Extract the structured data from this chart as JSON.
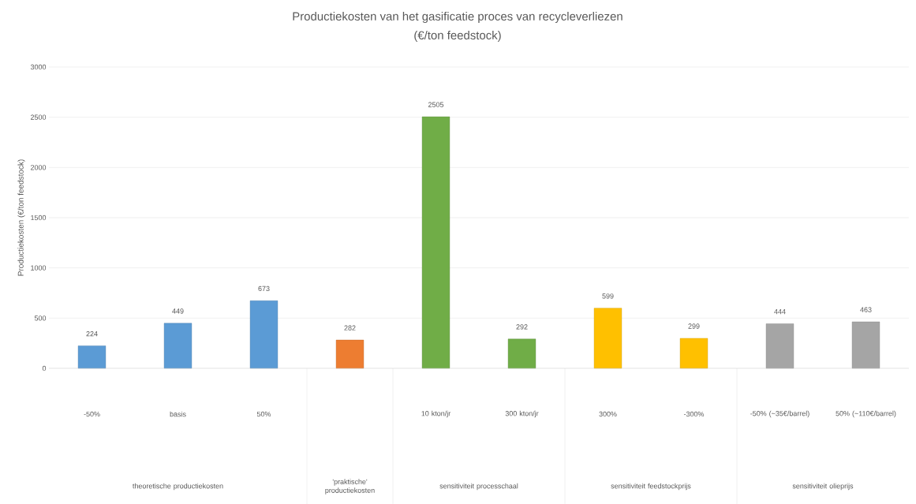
{
  "chart_data": {
    "type": "bar",
    "title": "Productiekosten van het gasificatie proces van recycleverliezen",
    "subtitle": "(€/ton feedstock)",
    "ylabel": "Productiekosten (€/ton feedstock)",
    "categories": [
      "-50%",
      "basis",
      "50%",
      null,
      "10 kton/jr",
      "300 kton/jr",
      "300%",
      "-300%",
      "-50% (~35€/barrel)",
      "50% (~110€/barrel)"
    ],
    "values": [
      224,
      449,
      673,
      282,
      2505,
      292,
      599,
      299,
      444,
      463
    ],
    "colors": [
      "#5b9bd5",
      "#5b9bd5",
      "#5b9bd5",
      "#ed7d31",
      "#70ad47",
      "#70ad47",
      "#ffc000",
      "#ffc000",
      "#a5a5a5",
      "#a5a5a5"
    ],
    "ylim": [
      0,
      3000
    ],
    "yticks": [
      0,
      500,
      1000,
      1500,
      2000,
      2500,
      3000
    ],
    "grid": "y",
    "data_labels": true,
    "annotations": [
      "theoretische productiekosten",
      "'praktische' productiekosten",
      "sensitiviteit processchaal",
      "sensitiviteit feedstockprijs",
      "sensitiviteit olieprijs"
    ]
  }
}
